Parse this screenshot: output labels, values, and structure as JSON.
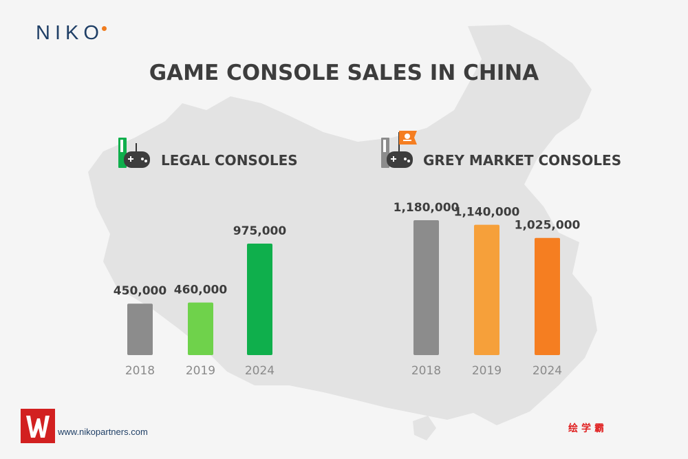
{
  "brand": {
    "name": "NIKO",
    "accent": "#f07c1e",
    "color": "#1f3f66"
  },
  "title": "GAME CONSOLE SALES IN CHINA",
  "footer": {
    "url": "www.nikopartners.com",
    "watermark": "绘学霸"
  },
  "colors": {
    "text": "#3d3d3d",
    "axis_label": "#8a8a8a",
    "map": "#e3e3e3",
    "gray_bar": "#8c8c8c",
    "green_light": "#6fd24b",
    "green": "#0faf4c",
    "orange_light": "#f6a03a",
    "orange": "#f57e21"
  },
  "chart_data": [
    {
      "type": "bar",
      "title": "LEGAL CONSOLES",
      "icon": "controller-icon",
      "categories": [
        "2018",
        "2019",
        "2024"
      ],
      "values": [
        450000,
        460000,
        975000
      ],
      "value_labels": [
        "450,000",
        "460,000",
        "975,000"
      ],
      "colors": [
        "#8c8c8c",
        "#6fd24b",
        "#0faf4c"
      ],
      "ylim": [
        0,
        1200000
      ],
      "xlabel": "",
      "ylabel": ""
    },
    {
      "type": "bar",
      "title": "GREY MARKET CONSOLES",
      "icon": "pirate-controller-icon",
      "categories": [
        "2018",
        "2019",
        "2024"
      ],
      "values": [
        1180000,
        1140000,
        1025000
      ],
      "value_labels": [
        "1,180,000",
        "1,140,000",
        "1,025,000"
      ],
      "colors": [
        "#8c8c8c",
        "#f6a03a",
        "#f57e21"
      ],
      "ylim": [
        0,
        1200000
      ],
      "xlabel": "",
      "ylabel": ""
    }
  ]
}
